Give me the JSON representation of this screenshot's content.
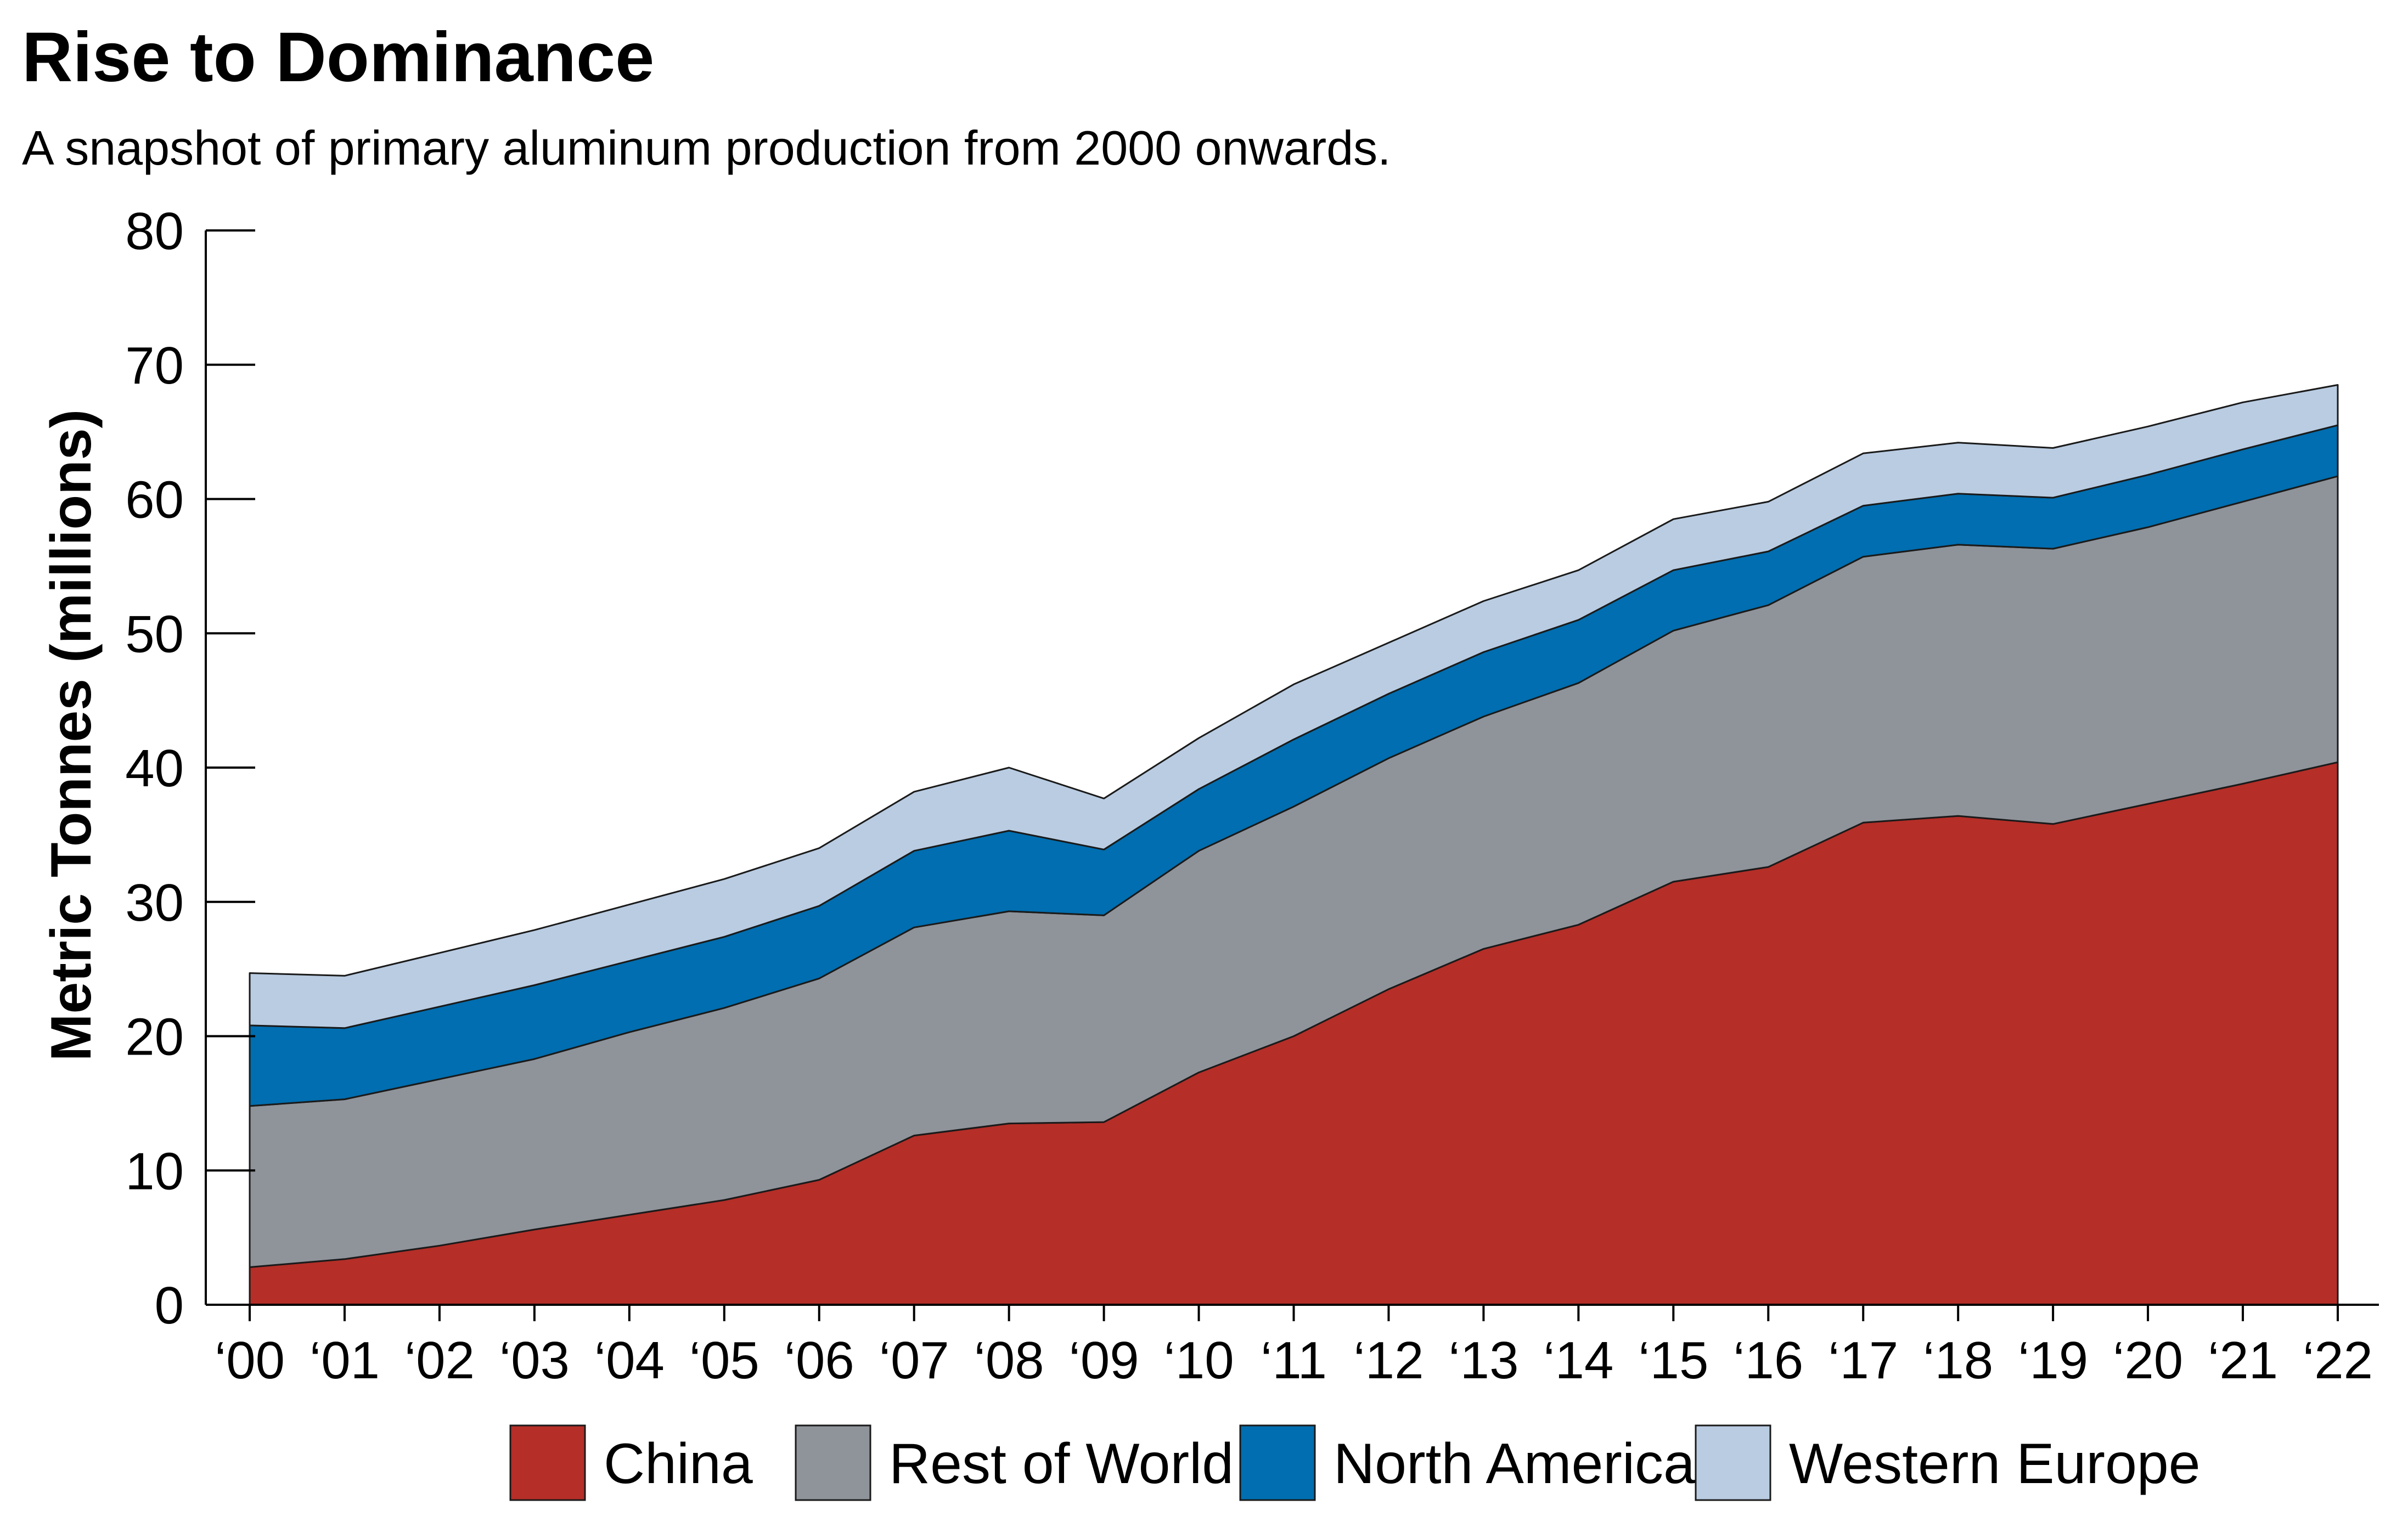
{
  "chart_data": {
    "type": "area",
    "stacked": true,
    "title": "Rise to Dominance",
    "subtitle": "A snapshot of primary aluminum production from 2000 onwards.",
    "ylabel": "Metric Tonnes (millions)",
    "xlabel": "",
    "ylim": [
      0,
      80
    ],
    "yticks": [
      0,
      10,
      20,
      30,
      40,
      50,
      60,
      70,
      80
    ],
    "grid": false,
    "legend_position": "bottom",
    "categories": [
      "‘00",
      "‘01",
      "‘02",
      "‘03",
      "‘04",
      "‘05",
      "‘06",
      "‘07",
      "‘08",
      "‘09",
      "‘10",
      "‘11",
      "‘12",
      "‘13",
      "‘14",
      "‘15",
      "‘16",
      "‘17",
      "‘18",
      "‘19",
      "‘20",
      "‘21",
      "‘22"
    ],
    "series": [
      {
        "name": "China",
        "color": "#b52e28",
        "values": [
          2.8,
          3.4,
          4.4,
          5.6,
          6.7,
          7.8,
          9.3,
          12.6,
          13.5,
          13.6,
          17.3,
          20.0,
          23.5,
          26.5,
          28.3,
          31.5,
          32.6,
          35.9,
          36.4,
          35.8,
          37.3,
          38.8,
          40.4
        ]
      },
      {
        "name": "Rest of World",
        "color": "#8f939a",
        "values": [
          12.0,
          11.9,
          12.4,
          12.7,
          13.6,
          14.3,
          15.0,
          15.5,
          15.8,
          15.4,
          16.5,
          17.1,
          17.2,
          17.3,
          18.0,
          18.7,
          19.5,
          19.8,
          20.2,
          20.5,
          20.6,
          21.0,
          21.3
        ]
      },
      {
        "name": "North America",
        "color": "#006eb0",
        "values": [
          6.0,
          5.3,
          5.4,
          5.5,
          5.3,
          5.3,
          5.4,
          5.7,
          6.0,
          4.9,
          4.6,
          5.0,
          4.8,
          4.8,
          4.7,
          4.5,
          4.0,
          3.8,
          3.8,
          3.8,
          3.9,
          3.9,
          3.8
        ]
      },
      {
        "name": "Western Europe",
        "color": "#b9cce2",
        "values": [
          3.9,
          3.9,
          4.0,
          4.1,
          4.2,
          4.3,
          4.3,
          4.4,
          4.7,
          3.8,
          3.8,
          4.1,
          3.8,
          3.8,
          3.7,
          3.8,
          3.7,
          3.9,
          3.8,
          3.7,
          3.6,
          3.5,
          3.0
        ]
      }
    ]
  }
}
